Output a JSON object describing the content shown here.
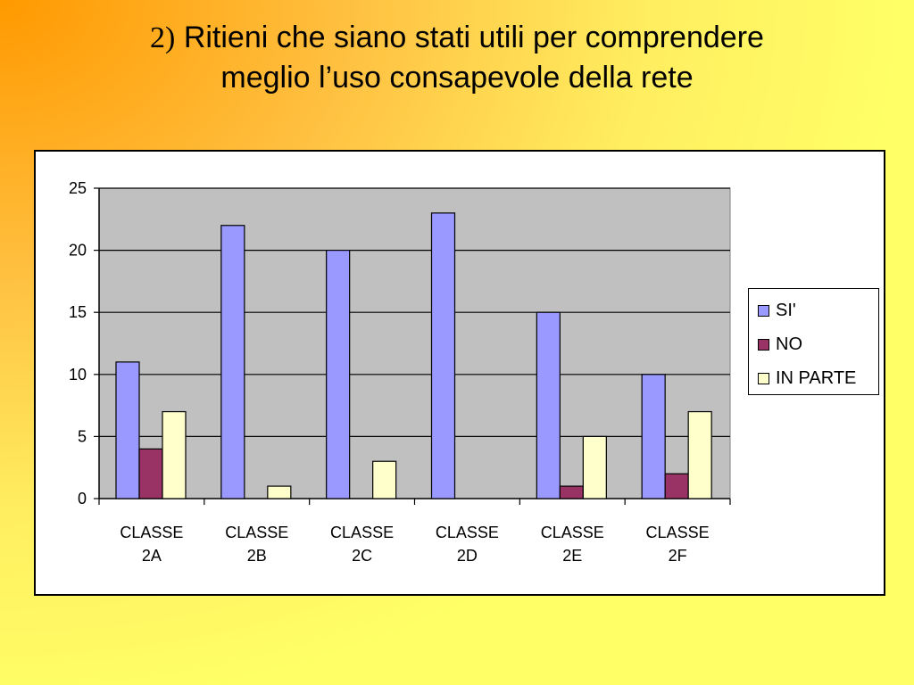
{
  "slide": {
    "title_number": "2)",
    "title_line1": "Ritieni che siano stati utili per comprendere",
    "title_line2": "meglio l’uso consapevole della rete"
  },
  "colors": {
    "plot_background": "#c0c0c0",
    "series": [
      "#9999ff",
      "#993366",
      "#ffffcc"
    ]
  },
  "chart_data": {
    "type": "bar",
    "categories": [
      [
        "CLASSE",
        "2A"
      ],
      [
        "CLASSE",
        "2B"
      ],
      [
        "CLASSE",
        "2C"
      ],
      [
        "CLASSE",
        "2D"
      ],
      [
        "CLASSE",
        "2E"
      ],
      [
        "CLASSE",
        "2F"
      ]
    ],
    "series": [
      {
        "name": "SI'",
        "values": [
          11,
          22,
          20,
          23,
          15,
          10
        ]
      },
      {
        "name": "NO",
        "values": [
          4,
          0,
          0,
          0,
          1,
          2
        ]
      },
      {
        "name": "IN PARTE",
        "values": [
          7,
          1,
          3,
          0,
          5,
          7
        ]
      }
    ],
    "y_ticks": [
      "0",
      "5",
      "10",
      "15",
      "20",
      "25"
    ],
    "ylim": [
      0,
      25
    ],
    "grid": true,
    "legend_position": "right"
  }
}
